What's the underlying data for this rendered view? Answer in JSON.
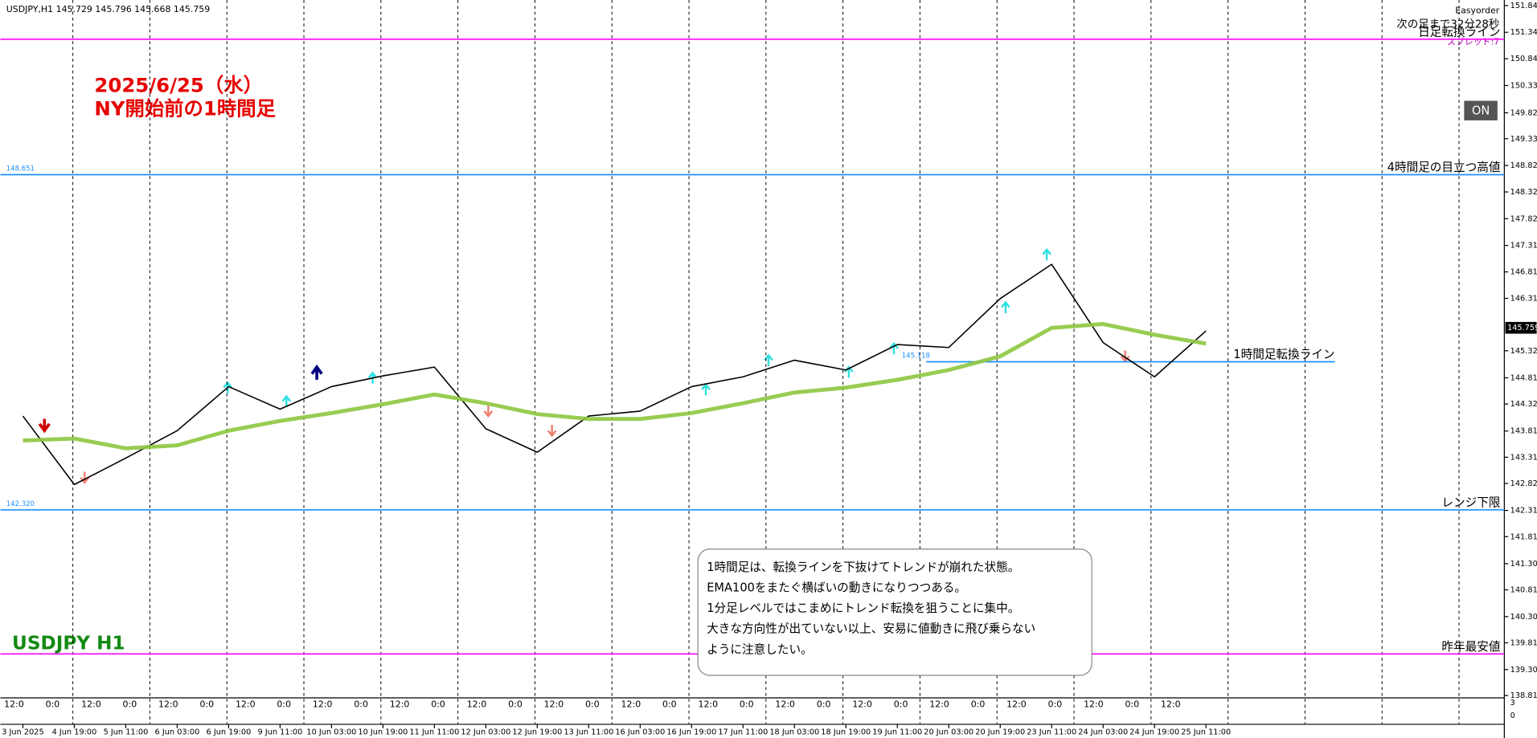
{
  "chart_data": {
    "type": "line",
    "header": "USDJPY,H1  145.729 145.796 145.668 145.759",
    "broker_label": "Easyorder",
    "countdown": "次の足まで32分28秒",
    "spread": "スプレッド:7",
    "button": "ON",
    "annotation_date": "2025/6/25（水）",
    "annotation_title": "NY開始前の1時間足",
    "symbol_label": "USDJPY H1",
    "note_lines": [
      "1時間足は、転換ラインを下抜けてトレンドが崩れた状態。",
      "EMA100をまたぐ横ばいの動きになりつつある。",
      "1分足レベルではこまめにトレンド転換を狙うことに集中。",
      "大きな方向性が出ていない以上、安易に値動きに飛び乗らない",
      "ように注意したい。"
    ],
    "categories": [
      "3 Jun 2025",
      "4 Jun 19:00",
      "5 Jun 11:00",
      "6 Jun 03:00",
      "6 Jun 19:00",
      "9 Jun 11:00",
      "10 Jun 03:00",
      "10 Jun 19:00",
      "11 Jun 11:00",
      "12 Jun 03:00",
      "12 Jun 19:00",
      "13 Jun 11:00",
      "16 Jun 03:00",
      "16 Jun 19:00",
      "17 Jun 11:00",
      "18 Jun 03:00",
      "18 Jun 19:00",
      "19 Jun 11:00",
      "20 Jun 03:00",
      "20 Jun 19:00",
      "23 Jun 11:00",
      "24 Jun 03:00",
      "24 Jun 19:00",
      "25 Jun 11:00"
    ],
    "time_labels": [
      "12:0",
      "0:0",
      "12:0",
      "0:0",
      "12:0",
      "0:0",
      "12:0",
      "0:0",
      "12:0",
      "0:0",
      "12:0",
      "0:0",
      "12:0",
      "0:0",
      "12:0",
      "0:0",
      "12:0",
      "0:0",
      "12:0",
      "0:0",
      "12:0",
      "0:0",
      "12:0",
      "0:0",
      "12:0",
      "0:0",
      "12:0",
      "0:0",
      "12:0",
      "0:0",
      "12:0"
    ],
    "series": [
      {
        "color": "#000000",
        "values": [
          144.093,
          142.799,
          143.298,
          143.816,
          144.648,
          144.223,
          144.648,
          144.851,
          145.017,
          143.853,
          143.409,
          144.093,
          144.186,
          144.648,
          144.833,
          145.147,
          144.962,
          145.443,
          145.387,
          146.311,
          146.958,
          145.48,
          144.833,
          145.701
        ]
      },
      {
        "color": "#8dc63f",
        "values": [
          143.631,
          143.668,
          143.483,
          143.539,
          143.816,
          144.001,
          144.149,
          144.315,
          144.5,
          144.334,
          144.13,
          144.038,
          144.038,
          144.149,
          144.334,
          144.537,
          144.629,
          144.777,
          144.962,
          145.221,
          145.757,
          145.831,
          145.627,
          145.461
        ]
      }
    ],
    "hlines": [
      {
        "value": 151.21,
        "color": "#ff00ff",
        "label": "日足転換ライン"
      },
      {
        "value": 148.651,
        "color": "#1e90ff",
        "label": "4時間足の目立つ高値",
        "show_price": true
      },
      {
        "value": 145.118,
        "color": "#1e90ff",
        "label": "1時間足転換ライン",
        "show_price": true,
        "segment": true
      },
      {
        "value": 142.32,
        "color": "#1e90ff",
        "label": "レンジ下限",
        "show_price": true,
        "price_label": "142.320"
      },
      {
        "value": 139.6,
        "color": "#ff00ff",
        "label": "昨年最安値"
      }
    ],
    "last_price": 145.759,
    "ylim": [
      138.77,
      151.95
    ],
    "yticks": [
      151.845,
      151.34,
      150.84,
      150.335,
      149.82,
      149.33,
      148.825,
      148.325,
      147.82,
      147.315,
      146.815,
      146.315,
      145.325,
      144.815,
      144.32,
      143.81,
      143.315,
      142.82,
      142.31,
      141.815,
      141.305,
      140.81,
      140.305,
      139.81,
      139.305,
      138.815
    ],
    "indicator_ticks": [
      3,
      0
    ]
  }
}
